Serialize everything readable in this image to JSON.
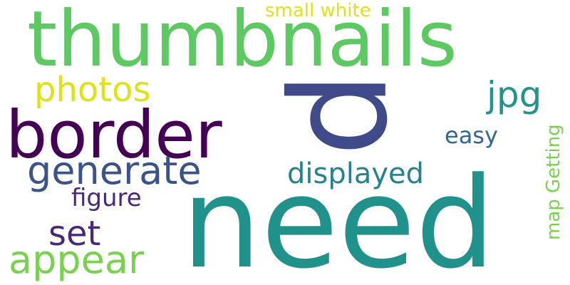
{
  "word_cloud": {
    "background": "#ffffff",
    "words": [
      {
        "id": "thumbnails",
        "text": "thumbnails",
        "color": "#5ec962"
      },
      {
        "id": "need",
        "text": "need",
        "color": "#21918c"
      },
      {
        "id": "p",
        "text": "p",
        "color": "#3e4a89"
      },
      {
        "id": "border",
        "text": "border",
        "color": "#440154"
      },
      {
        "id": "generate",
        "text": "generate",
        "color": "#3b528b"
      },
      {
        "id": "photos",
        "text": "photos",
        "color": "#dde318"
      },
      {
        "id": "appear",
        "text": "appear",
        "color": "#7ad151"
      },
      {
        "id": "set",
        "text": "set",
        "color": "#482878"
      },
      {
        "id": "figure",
        "text": "figure",
        "color": "#482878"
      },
      {
        "id": "displayed",
        "text": "displayed",
        "color": "#26828e"
      },
      {
        "id": "jpg",
        "text": "jpg",
        "color": "#1f968b"
      },
      {
        "id": "easy",
        "text": "easy",
        "color": "#31688e"
      },
      {
        "id": "small_white",
        "text": "small white",
        "color": "#dde318"
      },
      {
        "id": "map_getting",
        "text": "map Getting",
        "color": "#7ad151"
      }
    ]
  }
}
